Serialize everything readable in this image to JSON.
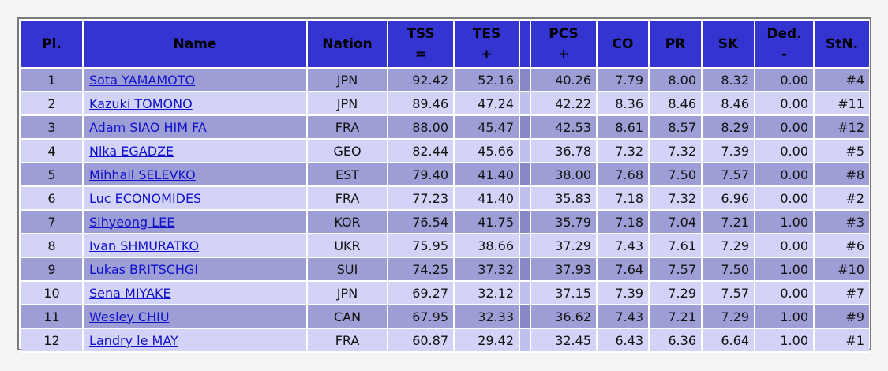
{
  "headers": {
    "pl": "Pl.",
    "name": "Name",
    "nation": "Nation",
    "tss": "TSS",
    "tss_sub": "=",
    "tes": "TES",
    "tes_sub": "+",
    "pcs": "PCS",
    "pcs_sub": "+",
    "co": "CO",
    "pr": "PR",
    "sk": "SK",
    "ded": "Ded.",
    "ded_sub": "-",
    "stn": "StN."
  },
  "rows": [
    {
      "pl": "1",
      "name": "Sota YAMAMOTO",
      "nation": "JPN",
      "tss": "92.42",
      "tes": "52.16",
      "pcs": "40.26",
      "co": "7.79",
      "pr": "8.00",
      "sk": "8.32",
      "ded": "0.00",
      "stn": "#4"
    },
    {
      "pl": "2",
      "name": "Kazuki TOMONO",
      "nation": "JPN",
      "tss": "89.46",
      "tes": "47.24",
      "pcs": "42.22",
      "co": "8.36",
      "pr": "8.46",
      "sk": "8.46",
      "ded": "0.00",
      "stn": "#11"
    },
    {
      "pl": "3",
      "name": "Adam SIAO HIM FA",
      "nation": "FRA",
      "tss": "88.00",
      "tes": "45.47",
      "pcs": "42.53",
      "co": "8.61",
      "pr": "8.57",
      "sk": "8.29",
      "ded": "0.00",
      "stn": "#12"
    },
    {
      "pl": "4",
      "name": "Nika EGADZE",
      "nation": "GEO",
      "tss": "82.44",
      "tes": "45.66",
      "pcs": "36.78",
      "co": "7.32",
      "pr": "7.32",
      "sk": "7.39",
      "ded": "0.00",
      "stn": "#5"
    },
    {
      "pl": "5",
      "name": "Mihhail SELEVKO",
      "nation": "EST",
      "tss": "79.40",
      "tes": "41.40",
      "pcs": "38.00",
      "co": "7.68",
      "pr": "7.50",
      "sk": "7.57",
      "ded": "0.00",
      "stn": "#8"
    },
    {
      "pl": "6",
      "name": "Luc ECONOMIDES",
      "nation": "FRA",
      "tss": "77.23",
      "tes": "41.40",
      "pcs": "35.83",
      "co": "7.18",
      "pr": "7.32",
      "sk": "6.96",
      "ded": "0.00",
      "stn": "#2"
    },
    {
      "pl": "7",
      "name": "Sihyeong LEE",
      "nation": "KOR",
      "tss": "76.54",
      "tes": "41.75",
      "pcs": "35.79",
      "co": "7.18",
      "pr": "7.04",
      "sk": "7.21",
      "ded": "1.00",
      "stn": "#3"
    },
    {
      "pl": "8",
      "name": "Ivan SHMURATKO",
      "nation": "UKR",
      "tss": "75.95",
      "tes": "38.66",
      "pcs": "37.29",
      "co": "7.43",
      "pr": "7.61",
      "sk": "7.29",
      "ded": "0.00",
      "stn": "#6"
    },
    {
      "pl": "9",
      "name": "Lukas BRITSCHGI",
      "nation": "SUI",
      "tss": "74.25",
      "tes": "37.32",
      "pcs": "37.93",
      "co": "7.64",
      "pr": "7.57",
      "sk": "7.50",
      "ded": "1.00",
      "stn": "#10"
    },
    {
      "pl": "10",
      "name": "Sena MIYAKE",
      "nation": "JPN",
      "tss": "69.27",
      "tes": "32.12",
      "pcs": "37.15",
      "co": "7.39",
      "pr": "7.29",
      "sk": "7.57",
      "ded": "0.00",
      "stn": "#7"
    },
    {
      "pl": "11",
      "name": "Wesley CHIU",
      "nation": "CAN",
      "tss": "67.95",
      "tes": "32.33",
      "pcs": "36.62",
      "co": "7.43",
      "pr": "7.21",
      "sk": "7.29",
      "ded": "1.00",
      "stn": "#9"
    },
    {
      "pl": "12",
      "name": "Landry le MAY",
      "nation": "FRA",
      "tss": "60.87",
      "tes": "29.42",
      "pcs": "32.45",
      "co": "6.43",
      "pr": "6.36",
      "sk": "6.64",
      "ded": "1.00",
      "stn": "#1"
    }
  ]
}
